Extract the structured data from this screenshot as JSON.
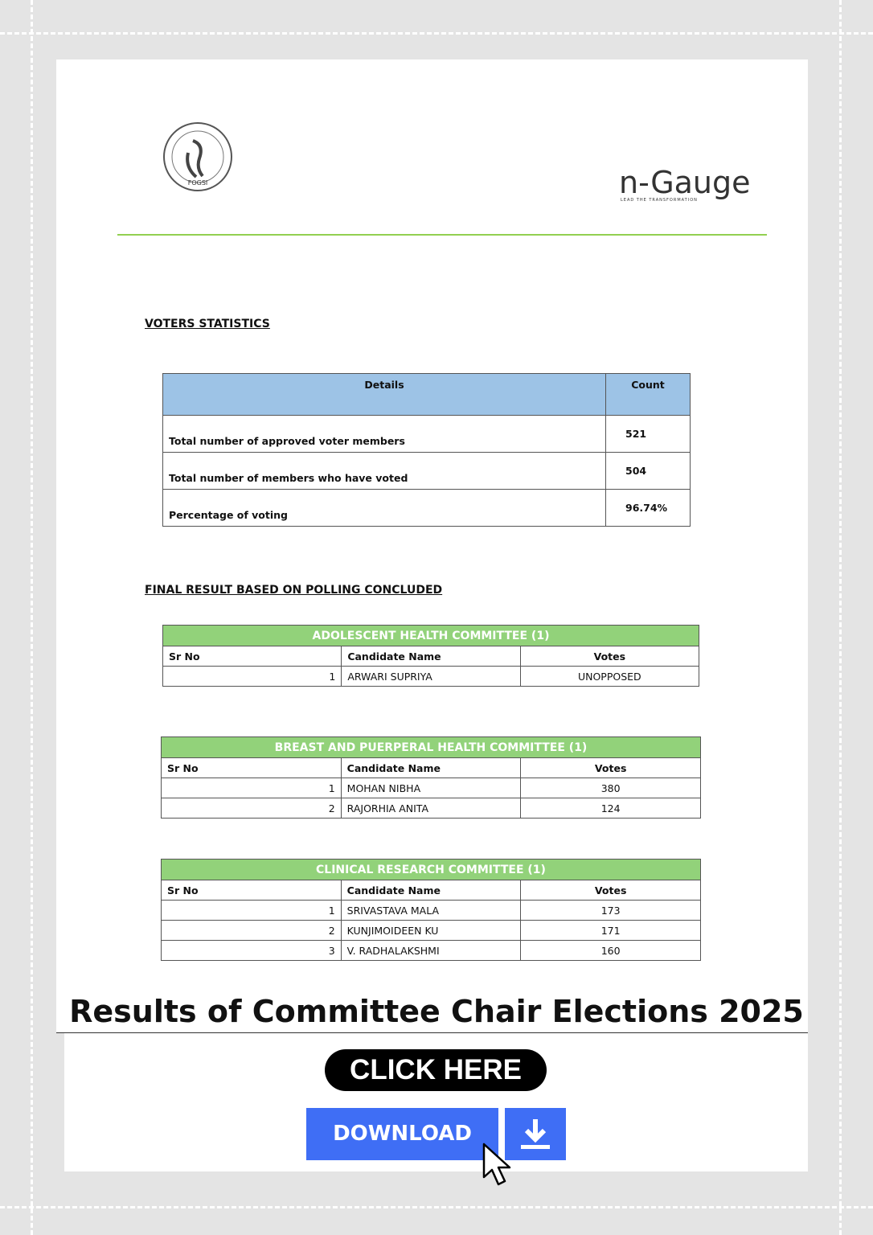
{
  "logo": {
    "seal_text": "FOGSI",
    "brand": "n-Gauge",
    "tagline": "LEAD THE TRANSFORMATION"
  },
  "voters_statistics": {
    "heading": "VOTERS STATISTICS",
    "columns": [
      "Details",
      "Count"
    ],
    "rows": [
      [
        "Total number of approved voter members",
        521
      ],
      [
        "Total number of members who have voted",
        504
      ],
      [
        "Percentage of voting",
        "96.74%"
      ]
    ]
  },
  "final_results": {
    "heading": "FINAL RESULT BASED ON POLLING CONCLUDED",
    "committees": [
      {
        "title": "ADOLESCENT HEALTH COMMITTEE (1)",
        "columns": [
          "Sr No",
          "Candidate Name",
          "Votes"
        ],
        "rows": [
          [
            1,
            "ARWARI SUPRIYA",
            "UNOPPOSED"
          ]
        ]
      },
      {
        "title": "BREAST AND PUERPERAL HEALTH COMMITTEE (1)",
        "columns": [
          "Sr No",
          "Candidate Name",
          "Votes"
        ],
        "rows": [
          [
            1,
            "MOHAN NIBHA",
            380
          ],
          [
            2,
            "RAJORHIA ANITA",
            124
          ]
        ]
      },
      {
        "title": "CLINICAL RESEARCH COMMITTEE (1)",
        "columns": [
          "Sr No",
          "Candidate Name",
          "Votes"
        ],
        "rows": [
          [
            1,
            "SRIVASTAVA MALA",
            173
          ],
          [
            2,
            "KUNJIMOIDEEN KU",
            171
          ],
          [
            3,
            "V. RADHALAKSHMI",
            160
          ]
        ]
      }
    ]
  },
  "banner": {
    "title": "Results of Committee Chair Elections 2025",
    "cta": "CLICK HERE",
    "download": "DOWNLOAD"
  }
}
